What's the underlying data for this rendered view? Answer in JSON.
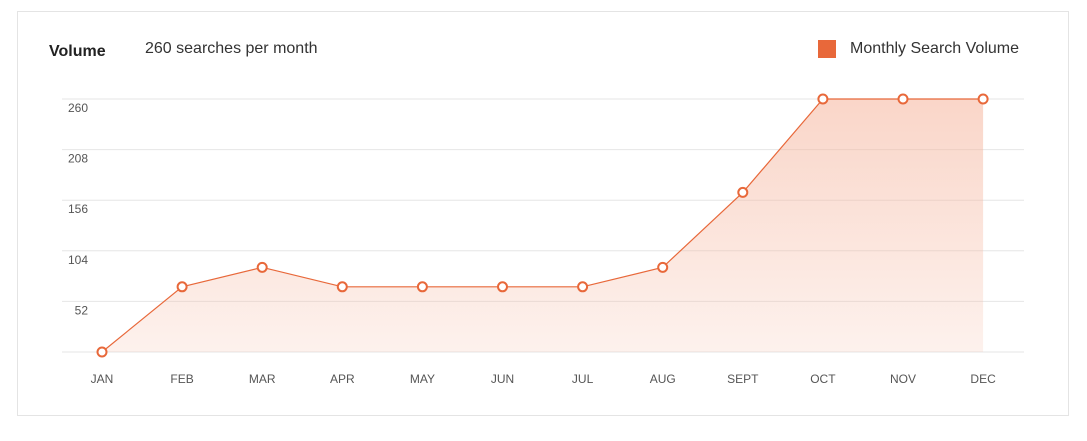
{
  "header": {
    "title": "Volume",
    "subtitle": "260 searches per month"
  },
  "legend": {
    "label": "Monthly Search Volume"
  },
  "colors": {
    "accent": "#e8683a",
    "fill": "#f5b49c",
    "grid": "#e6e6e6"
  },
  "chart_data": {
    "type": "area",
    "categories": [
      "JAN",
      "FEB",
      "MAR",
      "APR",
      "MAY",
      "JUN",
      "JUL",
      "AUG",
      "SEPT",
      "OCT",
      "NOV",
      "DEC"
    ],
    "series": [
      {
        "name": "Monthly Search Volume",
        "values": [
          0,
          67,
          87,
          67,
          67,
          67,
          67,
          87,
          164,
          260,
          260,
          260
        ]
      }
    ],
    "yticks": [
      52,
      104,
      156,
      208,
      260
    ],
    "ylim": [
      0,
      260
    ],
    "grid": true,
    "legend_position": "top-right"
  }
}
